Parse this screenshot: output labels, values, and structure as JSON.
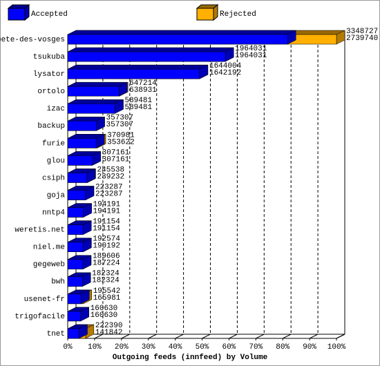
{
  "chart_data": {
    "type": "bar3d",
    "orientation": "horizontal",
    "overlay": true,
    "title": "Outgoing feeds (innfeed) by Volume",
    "categories": [
      "bete-des-vosges",
      "tsukuba",
      "lysator",
      "ortolo",
      "izac",
      "backup",
      "furie",
      "glou",
      "csiph",
      "goja",
      "nntp4",
      "weretis.net",
      "niel.me",
      "gegeweb",
      "bwh",
      "usenet-fr",
      "trigofacile",
      "tnet"
    ],
    "series": [
      {
        "name": "Accepted",
        "color": "#0000ff",
        "values": [
          2739740,
          1964031,
          1642192,
          638931,
          589481,
          357307,
          353622,
          307161,
          239232,
          223287,
          194191,
          191154,
          190192,
          187224,
          182324,
          165981,
          160630,
          141842
        ]
      },
      {
        "name": "Rejected",
        "color": "#ffb000",
        "values": [
          3348727,
          1964031,
          1644004,
          647214,
          589481,
          357307,
          370981,
          307161,
          245538,
          223287,
          194191,
          191154,
          192574,
          189606,
          182324,
          195542,
          160630,
          222390
        ]
      }
    ],
    "xlim": [
      0,
      3348727
    ],
    "xticks": [
      {
        "value": 0,
        "label": "0%"
      },
      {
        "value": 334872.7,
        "label": "10%"
      },
      {
        "value": 669745.4,
        "label": "20%"
      },
      {
        "value": 1004618.1,
        "label": "30%"
      },
      {
        "value": 1339490.8,
        "label": "40%"
      },
      {
        "value": 1674363.5,
        "label": "50%"
      },
      {
        "value": 2009236.2,
        "label": "60%"
      },
      {
        "value": 2344108.9,
        "label": "70%"
      },
      {
        "value": 2678981.6,
        "label": "80%"
      },
      {
        "value": 3013854.3,
        "label": "90%"
      },
      {
        "value": 3348727,
        "label": "100%"
      }
    ],
    "grid": true
  }
}
